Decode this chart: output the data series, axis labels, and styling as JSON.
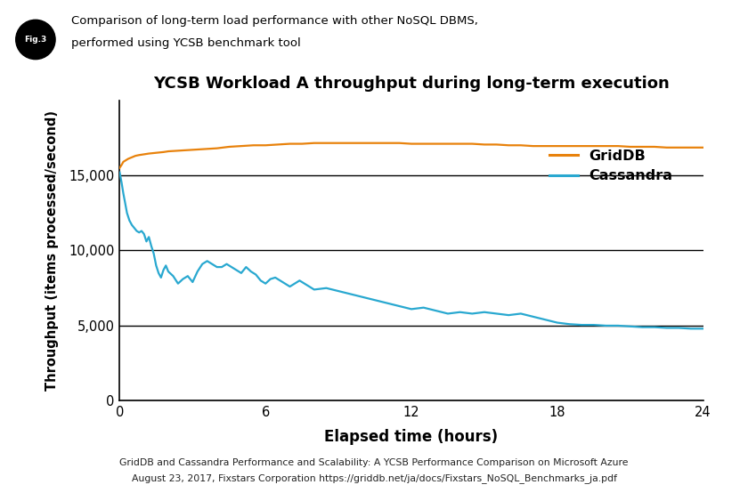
{
  "title": "YCSB Workload A throughput during long-term execution",
  "xlabel": "Elapsed time (hours)",
  "ylabel": "Throughput (items processed/second)",
  "header_line1": "Comparison of long-term load performance with other NoSQL DBMS,",
  "header_line2": "performed using YCSB benchmark tool",
  "footer_line1": "GridDB and Cassandra Performance and Scalability: A YCSB Performance Comparison on Microsoft Azure",
  "footer_line2": "August 23, 2017, Fixstars Corporation https://griddb.net/ja/docs/Fixstars_NoSQL_Benchmarks_ja.pdf",
  "legend_entries": [
    "GridDB",
    "Cassandra"
  ],
  "griddb_color": "#E8820C",
  "cassandra_color": "#29A8D0",
  "xlim": [
    0,
    24
  ],
  "ylim": [
    0,
    20000
  ],
  "yticks": [
    0,
    5000,
    10000,
    15000
  ],
  "ytick_labels": [
    "0",
    "5,000",
    "10,000",
    "15,000"
  ],
  "xticks": [
    0,
    6,
    12,
    18,
    24
  ],
  "griddb_x": [
    0.0,
    0.08,
    0.15,
    0.25,
    0.35,
    0.5,
    0.65,
    0.8,
    1.0,
    1.2,
    1.5,
    1.8,
    2.0,
    2.5,
    3.0,
    3.5,
    4.0,
    4.5,
    5.0,
    5.5,
    6.0,
    6.5,
    7.0,
    7.5,
    8.0,
    8.5,
    9.0,
    9.5,
    10.0,
    10.5,
    11.0,
    11.5,
    12.0,
    12.5,
    13.0,
    13.5,
    14.0,
    14.5,
    15.0,
    15.5,
    16.0,
    16.5,
    17.0,
    17.5,
    18.0,
    18.5,
    19.0,
    19.5,
    20.0,
    20.5,
    21.0,
    21.5,
    22.0,
    22.5,
    23.0,
    23.5,
    24.0
  ],
  "griddb_y": [
    15500,
    15700,
    15900,
    16000,
    16100,
    16200,
    16300,
    16350,
    16400,
    16450,
    16500,
    16550,
    16600,
    16650,
    16700,
    16750,
    16800,
    16900,
    16950,
    17000,
    17000,
    17050,
    17100,
    17100,
    17150,
    17150,
    17150,
    17150,
    17150,
    17150,
    17150,
    17150,
    17100,
    17100,
    17100,
    17100,
    17100,
    17100,
    17050,
    17050,
    17000,
    17000,
    16950,
    16950,
    16950,
    16950,
    16950,
    16950,
    16950,
    16950,
    16900,
    16900,
    16900,
    16850,
    16850,
    16850,
    16850
  ],
  "cassandra_x": [
    0.0,
    0.08,
    0.15,
    0.22,
    0.3,
    0.4,
    0.5,
    0.6,
    0.7,
    0.8,
    0.9,
    1.0,
    1.1,
    1.2,
    1.3,
    1.4,
    1.5,
    1.6,
    1.7,
    1.8,
    1.9,
    2.0,
    2.2,
    2.4,
    2.6,
    2.8,
    3.0,
    3.2,
    3.4,
    3.6,
    3.8,
    4.0,
    4.2,
    4.4,
    4.6,
    4.8,
    5.0,
    5.2,
    5.4,
    5.6,
    5.8,
    6.0,
    6.2,
    6.4,
    6.6,
    6.8,
    7.0,
    7.2,
    7.4,
    7.6,
    7.8,
    8.0,
    8.5,
    9.0,
    9.5,
    10.0,
    10.5,
    11.0,
    11.5,
    12.0,
    12.5,
    13.0,
    13.5,
    14.0,
    14.5,
    15.0,
    15.5,
    16.0,
    16.5,
    17.0,
    17.5,
    18.0,
    18.5,
    19.0,
    19.5,
    20.0,
    20.5,
    21.0,
    21.5,
    22.0,
    22.5,
    23.0,
    23.5,
    24.0
  ],
  "cassandra_y": [
    15200,
    14500,
    13800,
    13200,
    12500,
    12000,
    11700,
    11500,
    11300,
    11200,
    11300,
    11100,
    10600,
    10900,
    10300,
    9800,
    9000,
    8500,
    8200,
    8700,
    9000,
    8600,
    8300,
    7800,
    8100,
    8300,
    7900,
    8600,
    9100,
    9300,
    9100,
    8900,
    8900,
    9100,
    8900,
    8700,
    8500,
    8900,
    8600,
    8400,
    8000,
    7800,
    8100,
    8200,
    8000,
    7800,
    7600,
    7800,
    8000,
    7800,
    7600,
    7400,
    7500,
    7300,
    7100,
    6900,
    6700,
    6500,
    6300,
    6100,
    6200,
    6000,
    5800,
    5900,
    5800,
    5900,
    5800,
    5700,
    5800,
    5600,
    5400,
    5200,
    5100,
    5050,
    5050,
    5000,
    5000,
    4950,
    4900,
    4900,
    4850,
    4850,
    4800,
    4800
  ]
}
